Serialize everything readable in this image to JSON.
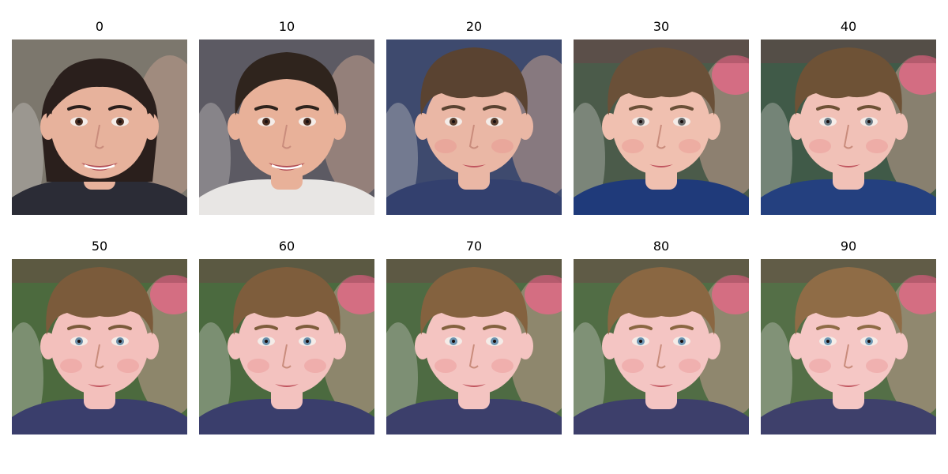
{
  "figure": {
    "panels": [
      {
        "label": "0",
        "subject": "adult-woman-smiling",
        "hair": "#2a1f1c",
        "skin": "#e7b29c",
        "eye": "#4a2e22",
        "bg": "#7c776d",
        "shirt": "#2b2c36"
      },
      {
        "label": "10",
        "subject": "young-man-smiling",
        "hair": "#2f241d",
        "skin": "#e8b199",
        "eye": "#4a2e22",
        "bg": "#5c5a63",
        "shirt": "#e8e6e4"
      },
      {
        "label": "20",
        "subject": "teen-boy",
        "hair": "#5a4331",
        "skin": "#eab7a5",
        "eye": "#5a4030",
        "bg": "#3e4a6e",
        "shirt": "#33406e"
      },
      {
        "label": "30",
        "subject": "boy",
        "hair": "#6a5038",
        "skin": "#f0c0b0",
        "eye": "#6a6a6a",
        "bg": "#4b5b4a",
        "shirt": "#1f3a7a"
      },
      {
        "label": "40",
        "subject": "boy",
        "hair": "#6e5236",
        "skin": "#f1c1b7",
        "eye": "#6c7d88",
        "bg": "#405a48",
        "shirt": "#24407f"
      },
      {
        "label": "50",
        "subject": "boy",
        "hair": "#7b5b3b",
        "skin": "#f3c0bc",
        "eye": "#6a8ca6",
        "bg": "#4c6a3e",
        "shirt": "#3a3e6c"
      },
      {
        "label": "60",
        "subject": "boy",
        "hair": "#7e5d3c",
        "skin": "#f3c2bf",
        "eye": "#6a90ac",
        "bg": "#4b6a3f",
        "shirt": "#3a3e6c"
      },
      {
        "label": "70",
        "subject": "boy",
        "hair": "#84623f",
        "skin": "#f4c4c1",
        "eye": "#6d94b0",
        "bg": "#4e6b43",
        "shirt": "#3c3f6b"
      },
      {
        "label": "80",
        "subject": "boy",
        "hair": "#8a6742",
        "skin": "#f4c5c3",
        "eye": "#6e95b2",
        "bg": "#516d45",
        "shirt": "#3d3f6b"
      },
      {
        "label": "90",
        "subject": "boy",
        "hair": "#8f6c46",
        "skin": "#f5c7c5",
        "eye": "#7099b5",
        "bg": "#546f47",
        "shirt": "#3e406b"
      }
    ]
  }
}
